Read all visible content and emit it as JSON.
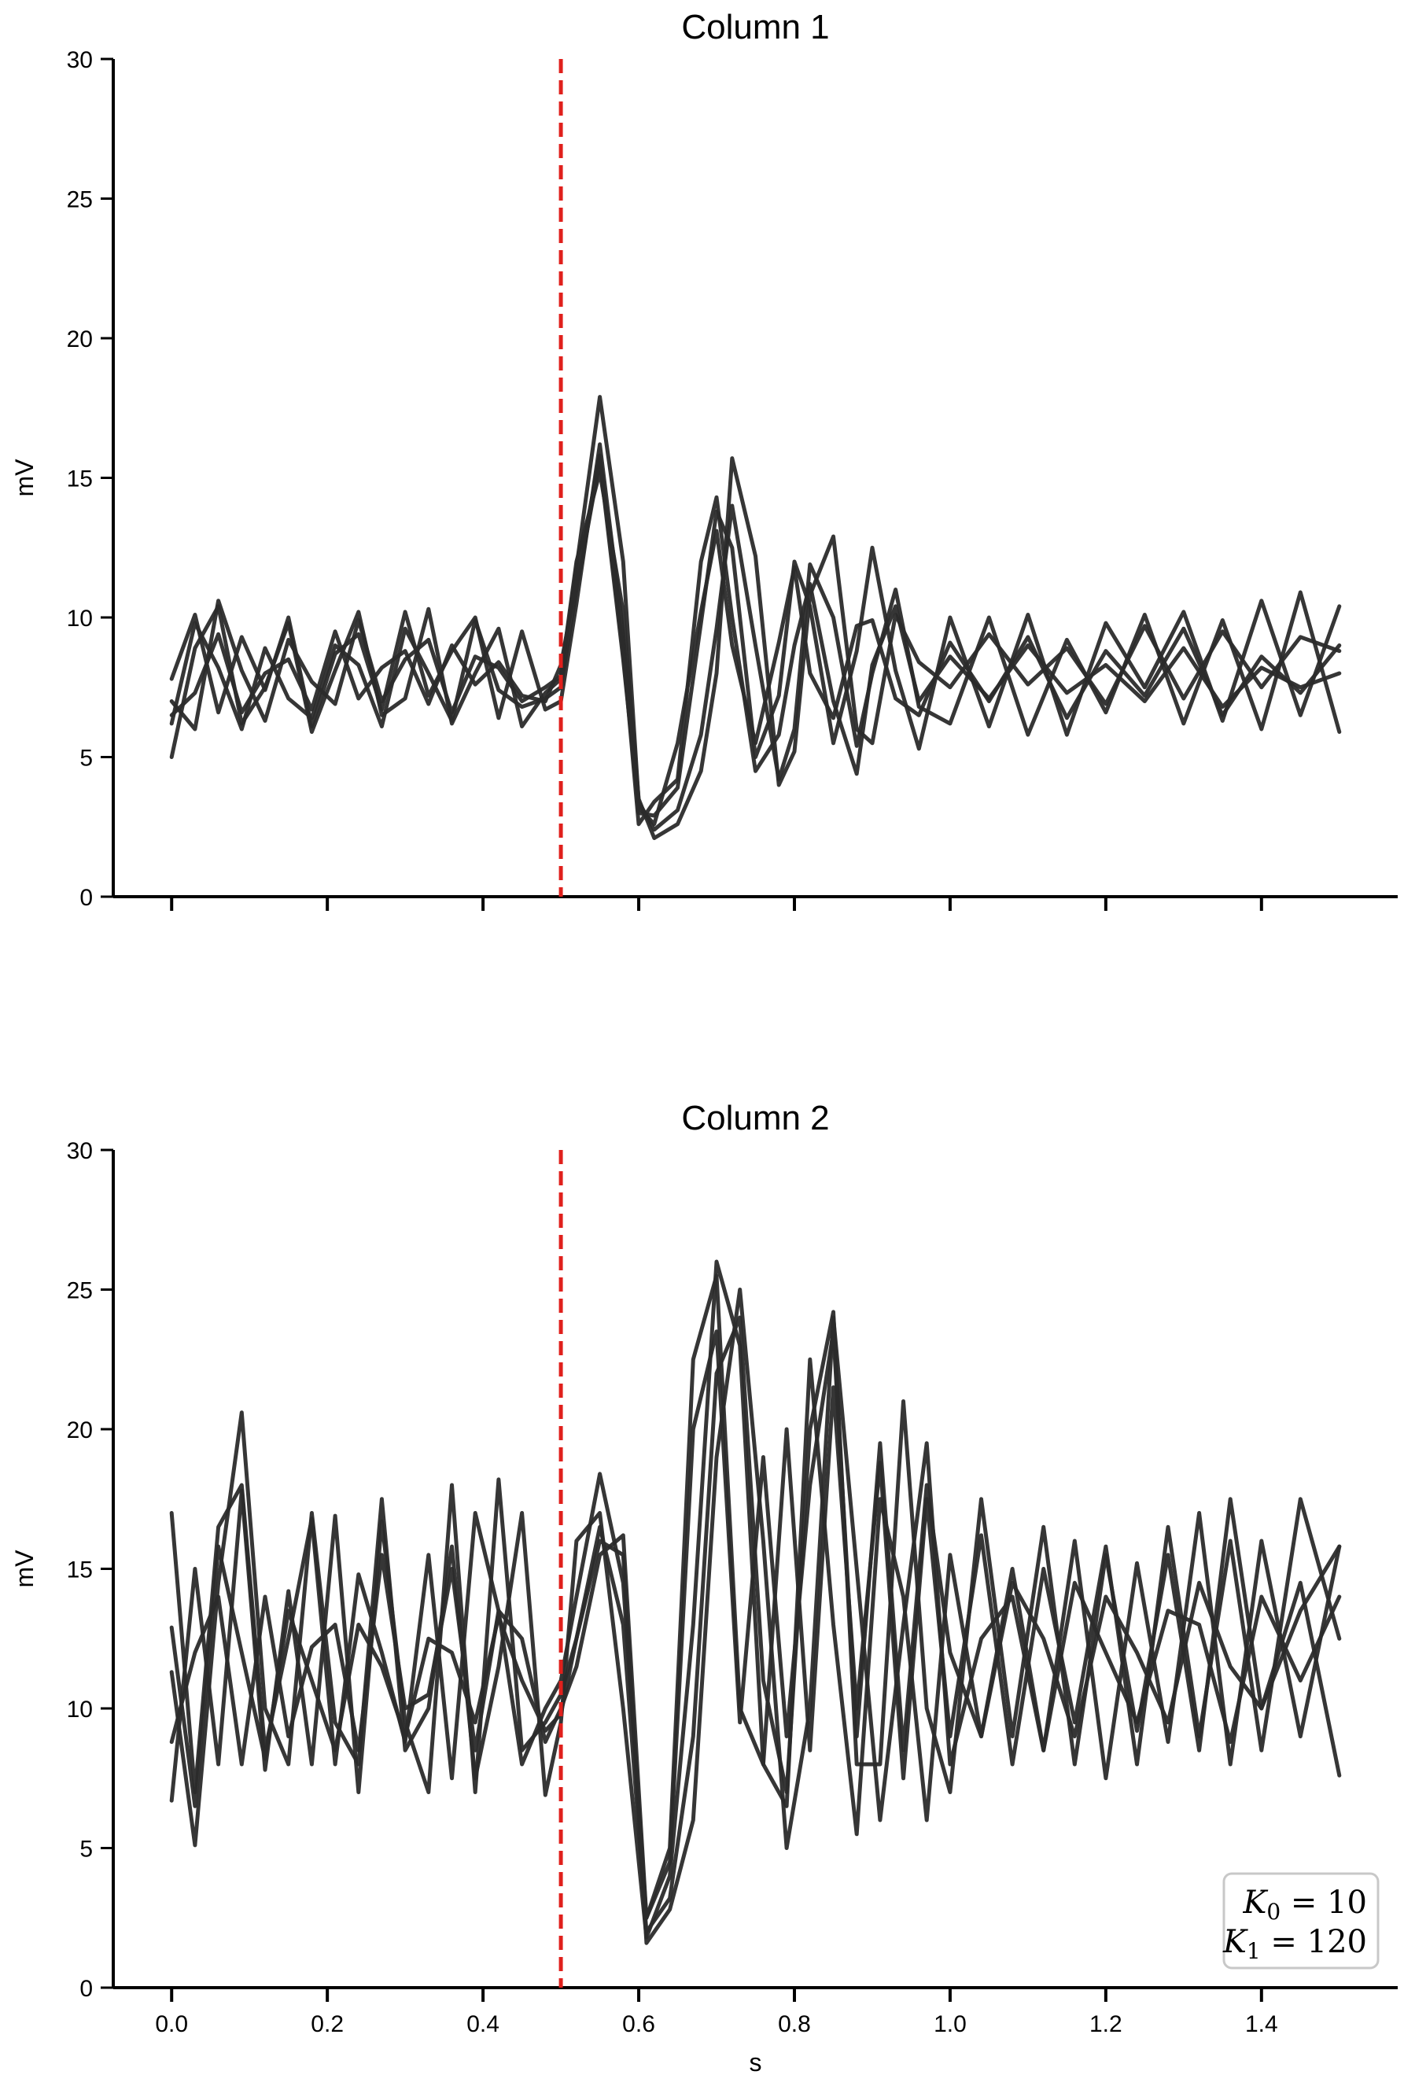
{
  "chart_data": [
    {
      "type": "line",
      "title": "Column 1",
      "xlabel": "",
      "ylabel": "mV",
      "xlim": [
        -0.075,
        1.575
      ],
      "ylim": [
        0,
        30
      ],
      "xticks": [
        0.0,
        0.2,
        0.4,
        0.6,
        0.8,
        1.0,
        1.2,
        1.4
      ],
      "xtick_labels_shown": false,
      "yticks": [
        0,
        5,
        10,
        15,
        20,
        25,
        30
      ],
      "ytick_labels": [
        "0",
        "5",
        "10",
        "15",
        "20",
        "25",
        "30"
      ],
      "grid": false,
      "vline": {
        "x": 0.5,
        "style": "dashed",
        "color": "#e0201c"
      },
      "line_color": "#2b2b2b",
      "series": [
        {
          "x": [
            0.0,
            0.03,
            0.06,
            0.09,
            0.12,
            0.15,
            0.18,
            0.21,
            0.24,
            0.27,
            0.3,
            0.33,
            0.36,
            0.39,
            0.42,
            0.45,
            0.48,
            0.5,
            0.52,
            0.55,
            0.58,
            0.6,
            0.62,
            0.65,
            0.68,
            0.7,
            0.72,
            0.75,
            0.78,
            0.8,
            0.82,
            0.85,
            0.88,
            0.9,
            0.93,
            0.96,
            1.0,
            1.05,
            1.1,
            1.15,
            1.2,
            1.25,
            1.3,
            1.35,
            1.4,
            1.45,
            1.5
          ],
          "y": [
            6.2,
            9.8,
            8.2,
            6.0,
            8.9,
            7.1,
            6.4,
            9.0,
            8.3,
            6.1,
            9.6,
            8.0,
            6.3,
            9.9,
            7.4,
            6.8,
            7.1,
            7.5,
            11.0,
            15.6,
            8.5,
            3.2,
            2.6,
            5.5,
            10.2,
            13.1,
            9.0,
            5.5,
            9.1,
            11.8,
            8.0,
            6.4,
            9.7,
            9.9,
            7.1,
            6.5,
            9.1,
            7.0,
            9.3,
            6.4,
            8.8,
            7.2,
            9.6,
            6.5,
            8.6,
            7.3,
            9.0
          ]
        },
        {
          "x": [
            0.0,
            0.03,
            0.06,
            0.09,
            0.12,
            0.15,
            0.18,
            0.21,
            0.24,
            0.27,
            0.3,
            0.33,
            0.36,
            0.39,
            0.42,
            0.45,
            0.48,
            0.5,
            0.52,
            0.55,
            0.58,
            0.6,
            0.62,
            0.65,
            0.68,
            0.7,
            0.72,
            0.75,
            0.78,
            0.8,
            0.82,
            0.85,
            0.88,
            0.9,
            0.93,
            0.96,
            1.0,
            1.05,
            1.1,
            1.15,
            1.2,
            1.25,
            1.3,
            1.35,
            1.4,
            1.45,
            1.5
          ],
          "y": [
            7.8,
            10.1,
            6.6,
            9.3,
            7.4,
            10.0,
            6.1,
            8.7,
            9.4,
            6.7,
            10.2,
            7.2,
            8.8,
            10.0,
            6.4,
            9.5,
            6.7,
            7.0,
            10.5,
            16.2,
            9.4,
            3.0,
            2.9,
            3.9,
            9.8,
            13.8,
            12.5,
            5.0,
            7.2,
            12.0,
            10.4,
            5.5,
            8.8,
            12.5,
            8.1,
            5.3,
            10.0,
            6.1,
            10.1,
            5.8,
            9.8,
            7.5,
            10.2,
            6.3,
            10.6,
            6.5,
            10.4
          ]
        },
        {
          "x": [
            0.0,
            0.03,
            0.06,
            0.09,
            0.12,
            0.15,
            0.18,
            0.21,
            0.24,
            0.27,
            0.3,
            0.33,
            0.36,
            0.39,
            0.42,
            0.45,
            0.48,
            0.5,
            0.52,
            0.55,
            0.58,
            0.6,
            0.62,
            0.65,
            0.68,
            0.7,
            0.72,
            0.75,
            0.78,
            0.8,
            0.82,
            0.85,
            0.88,
            0.9,
            0.93,
            0.96,
            1.0,
            1.05,
            1.1,
            1.15,
            1.2,
            1.25,
            1.3,
            1.35,
            1.4,
            1.45,
            1.5
          ],
          "y": [
            5.0,
            8.9,
            10.4,
            6.2,
            7.5,
            9.8,
            5.9,
            8.1,
            10.2,
            6.5,
            7.1,
            10.3,
            6.2,
            8.0,
            9.6,
            6.1,
            7.3,
            7.8,
            11.8,
            17.9,
            12.0,
            3.4,
            2.4,
            3.1,
            5.8,
            9.6,
            14.0,
            9.0,
            4.2,
            6.0,
            11.9,
            10.0,
            5.4,
            8.0,
            11.0,
            6.8,
            6.2,
            10.0,
            5.8,
            9.2,
            6.6,
            10.1,
            6.2,
            9.9,
            6.0,
            10.9,
            5.9
          ]
        },
        {
          "x": [
            0.0,
            0.03,
            0.06,
            0.09,
            0.12,
            0.15,
            0.18,
            0.21,
            0.24,
            0.27,
            0.3,
            0.33,
            0.36,
            0.39,
            0.42,
            0.45,
            0.48,
            0.5,
            0.52,
            0.55,
            0.58,
            0.6,
            0.62,
            0.65,
            0.68,
            0.7,
            0.72,
            0.75,
            0.78,
            0.8,
            0.82,
            0.85,
            0.88,
            0.9,
            0.93,
            0.96,
            1.0,
            1.05,
            1.1,
            1.15,
            1.2,
            1.25,
            1.3,
            1.35,
            1.4,
            1.45,
            1.5
          ],
          "y": [
            7.0,
            6.0,
            10.6,
            8.1,
            6.3,
            9.2,
            7.7,
            6.9,
            9.9,
            7.0,
            8.5,
            9.2,
            6.6,
            8.6,
            8.2,
            7.0,
            7.5,
            7.9,
            12.0,
            15.2,
            10.2,
            3.5,
            2.1,
            2.6,
            4.5,
            8.0,
            15.7,
            12.2,
            4.0,
            5.2,
            10.8,
            12.9,
            6.0,
            5.5,
            10.1,
            8.4,
            7.5,
            9.4,
            7.6,
            8.9,
            6.9,
            9.7,
            7.1,
            9.5,
            7.5,
            9.3,
            8.8
          ]
        },
        {
          "x": [
            0.0,
            0.03,
            0.06,
            0.09,
            0.12,
            0.15,
            0.18,
            0.21,
            0.24,
            0.27,
            0.3,
            0.33,
            0.36,
            0.39,
            0.42,
            0.45,
            0.48,
            0.5,
            0.52,
            0.55,
            0.58,
            0.6,
            0.62,
            0.65,
            0.68,
            0.7,
            0.72,
            0.75,
            0.78,
            0.8,
            0.82,
            0.85,
            0.88,
            0.9,
            0.93,
            0.96,
            1.0,
            1.05,
            1.1,
            1.15,
            1.2,
            1.25,
            1.3,
            1.35,
            1.4,
            1.45,
            1.5
          ],
          "y": [
            6.5,
            7.3,
            9.4,
            6.6,
            8.0,
            8.5,
            6.7,
            9.5,
            7.1,
            8.2,
            8.8,
            6.9,
            9.0,
            7.6,
            8.4,
            7.2,
            7.0,
            8.3,
            11.3,
            15.8,
            8.8,
            2.6,
            3.4,
            4.2,
            12.0,
            14.3,
            10.0,
            4.5,
            5.8,
            9.0,
            11.2,
            7.0,
            4.4,
            8.3,
            10.4,
            7.0,
            8.6,
            7.1,
            9.0,
            7.3,
            8.3,
            7.0,
            8.9,
            6.8,
            8.2,
            7.5,
            8.0
          ]
        }
      ]
    },
    {
      "type": "line",
      "title": "Column 2",
      "xlabel": "s",
      "ylabel": "mV",
      "xlim": [
        -0.075,
        1.575
      ],
      "ylim": [
        0,
        30
      ],
      "xticks": [
        0.0,
        0.2,
        0.4,
        0.6,
        0.8,
        1.0,
        1.2,
        1.4
      ],
      "xtick_labels": [
        "0.0",
        "0.2",
        "0.4",
        "0.6",
        "0.8",
        "1.0",
        "1.2",
        "1.4"
      ],
      "yticks": [
        0,
        5,
        10,
        15,
        20,
        25,
        30
      ],
      "ytick_labels": [
        "0",
        "5",
        "10",
        "15",
        "20",
        "25",
        "30"
      ],
      "grid": false,
      "vline": {
        "x": 0.5,
        "style": "dashed",
        "color": "#e0201c"
      },
      "line_color": "#2b2b2b",
      "legend": {
        "line1": "= 10",
        "line1_symbol": "K",
        "line1_sub": "0",
        "line2": "= 120",
        "line2_symbol": "K",
        "line2_sub": "1",
        "placement": "bottom-right"
      },
      "series": [
        {
          "x": [
            0.0,
            0.03,
            0.06,
            0.09,
            0.12,
            0.15,
            0.18,
            0.21,
            0.24,
            0.27,
            0.3,
            0.33,
            0.36,
            0.39,
            0.42,
            0.45,
            0.48,
            0.5,
            0.52,
            0.55,
            0.58,
            0.61,
            0.64,
            0.67,
            0.7,
            0.73,
            0.76,
            0.79,
            0.82,
            0.85,
            0.88,
            0.91,
            0.94,
            0.97,
            1.0,
            1.04,
            1.08,
            1.12,
            1.16,
            1.2,
            1.24,
            1.28,
            1.32,
            1.36,
            1.4,
            1.45,
            1.5
          ],
          "y": [
            17.0,
            7.0,
            16.5,
            18.0,
            8.5,
            12.5,
            16.8,
            8.0,
            14.8,
            12.0,
            8.8,
            15.5,
            7.5,
            17.0,
            13.5,
            8.0,
            10.0,
            11.0,
            14.0,
            18.4,
            14.5,
            2.5,
            5.0,
            22.5,
            25.5,
            10.0,
            8.0,
            20.0,
            8.5,
            21.5,
            10.0,
            18.8,
            7.5,
            17.5,
            9.0,
            16.2,
            8.0,
            15.0,
            9.5,
            15.8,
            8.0,
            16.5,
            9.0,
            16.0,
            8.5,
            17.5,
            12.5
          ]
        },
        {
          "x": [
            0.0,
            0.03,
            0.06,
            0.09,
            0.12,
            0.15,
            0.18,
            0.21,
            0.24,
            0.27,
            0.3,
            0.33,
            0.36,
            0.39,
            0.42,
            0.45,
            0.48,
            0.5,
            0.52,
            0.55,
            0.58,
            0.61,
            0.64,
            0.67,
            0.7,
            0.73,
            0.76,
            0.79,
            0.82,
            0.85,
            0.88,
            0.91,
            0.94,
            0.97,
            1.0,
            1.04,
            1.08,
            1.12,
            1.16,
            1.2,
            1.24,
            1.28,
            1.32,
            1.36,
            1.4,
            1.45,
            1.5
          ],
          "y": [
            11.3,
            5.1,
            14.5,
            20.6,
            10.0,
            8.0,
            17.0,
            9.5,
            8.0,
            17.5,
            8.5,
            10.0,
            15.8,
            7.5,
            11.5,
            17.0,
            6.9,
            9.5,
            16.0,
            17.0,
            10.0,
            1.8,
            4.0,
            13.0,
            26.0,
            23.0,
            8.0,
            6.5,
            22.5,
            13.0,
            5.5,
            17.5,
            14.0,
            6.0,
            15.5,
            9.0,
            15.0,
            8.5,
            16.0,
            7.5,
            15.2,
            8.8,
            17.0,
            8.0,
            16.0,
            9.0,
            15.8
          ]
        },
        {
          "x": [
            0.0,
            0.03,
            0.06,
            0.09,
            0.12,
            0.15,
            0.18,
            0.21,
            0.24,
            0.27,
            0.3,
            0.33,
            0.36,
            0.39,
            0.42,
            0.45,
            0.48,
            0.5,
            0.52,
            0.55,
            0.58,
            0.61,
            0.64,
            0.67,
            0.7,
            0.73,
            0.76,
            0.79,
            0.82,
            0.85,
            0.88,
            0.91,
            0.94,
            0.97,
            1.0,
            1.04,
            1.08,
            1.12,
            1.16,
            1.2,
            1.24,
            1.28,
            1.32,
            1.36,
            1.4,
            1.45,
            1.5
          ],
          "y": [
            6.7,
            15.0,
            8.0,
            17.8,
            7.8,
            14.2,
            8.0,
            16.9,
            7.0,
            16.7,
            9.5,
            7.0,
            18.0,
            7.0,
            18.2,
            8.5,
            9.5,
            10.5,
            12.5,
            16.5,
            13.0,
            2.0,
            3.2,
            9.0,
            22.0,
            24.0,
            11.0,
            7.0,
            20.0,
            24.2,
            8.0,
            8.0,
            21.0,
            10.0,
            7.0,
            17.5,
            9.0,
            16.5,
            8.0,
            15.5,
            9.2,
            15.5,
            8.5,
            17.5,
            10.0,
            14.5,
            7.6
          ]
        },
        {
          "x": [
            0.0,
            0.03,
            0.06,
            0.09,
            0.12,
            0.15,
            0.18,
            0.21,
            0.24,
            0.27,
            0.3,
            0.33,
            0.36,
            0.39,
            0.42,
            0.45,
            0.48,
            0.5,
            0.52,
            0.55,
            0.58,
            0.61,
            0.64,
            0.67,
            0.7,
            0.73,
            0.76,
            0.79,
            0.82,
            0.85,
            0.88,
            0.91,
            0.94,
            0.97,
            1.0,
            1.04,
            1.08,
            1.12,
            1.16,
            1.2,
            1.24,
            1.28,
            1.32,
            1.36,
            1.4,
            1.45,
            1.5
          ],
          "y": [
            12.9,
            6.5,
            15.8,
            12.0,
            8.2,
            13.5,
            11.0,
            8.5,
            13.0,
            11.5,
            9.0,
            12.5,
            12.0,
            9.5,
            13.3,
            11.0,
            9.2,
            9.8,
            12.5,
            16.0,
            15.5,
            1.6,
            2.8,
            6.0,
            19.0,
            25.0,
            16.0,
            5.0,
            10.0,
            24.0,
            15.0,
            6.0,
            13.0,
            19.5,
            8.0,
            12.5,
            14.0,
            8.5,
            14.5,
            12.0,
            9.5,
            13.5,
            13.0,
            8.8,
            14.0,
            11.0,
            14.0
          ]
        },
        {
          "x": [
            0.0,
            0.03,
            0.06,
            0.09,
            0.12,
            0.15,
            0.18,
            0.21,
            0.24,
            0.27,
            0.3,
            0.33,
            0.36,
            0.39,
            0.42,
            0.45,
            0.48,
            0.5,
            0.52,
            0.55,
            0.58,
            0.61,
            0.64,
            0.67,
            0.7,
            0.73,
            0.76,
            0.79,
            0.82,
            0.85,
            0.88,
            0.91,
            0.94,
            0.97,
            1.0,
            1.04,
            1.08,
            1.12,
            1.16,
            1.2,
            1.24,
            1.28,
            1.32,
            1.36,
            1.4,
            1.45,
            1.5
          ],
          "y": [
            8.8,
            12.0,
            14.0,
            8.0,
            14.0,
            9.0,
            12.2,
            13.0,
            8.5,
            15.5,
            10.0,
            10.5,
            15.0,
            8.5,
            13.5,
            12.5,
            8.8,
            10.0,
            11.5,
            15.5,
            16.2,
            2.5,
            4.5,
            20.0,
            23.5,
            9.5,
            19.0,
            9.0,
            18.0,
            23.5,
            9.0,
            19.5,
            8.5,
            18.0,
            12.0,
            9.0,
            14.5,
            12.5,
            9.0,
            14.0,
            12.0,
            9.5,
            14.5,
            11.5,
            10.0,
            13.5,
            15.8
          ]
        }
      ]
    }
  ]
}
